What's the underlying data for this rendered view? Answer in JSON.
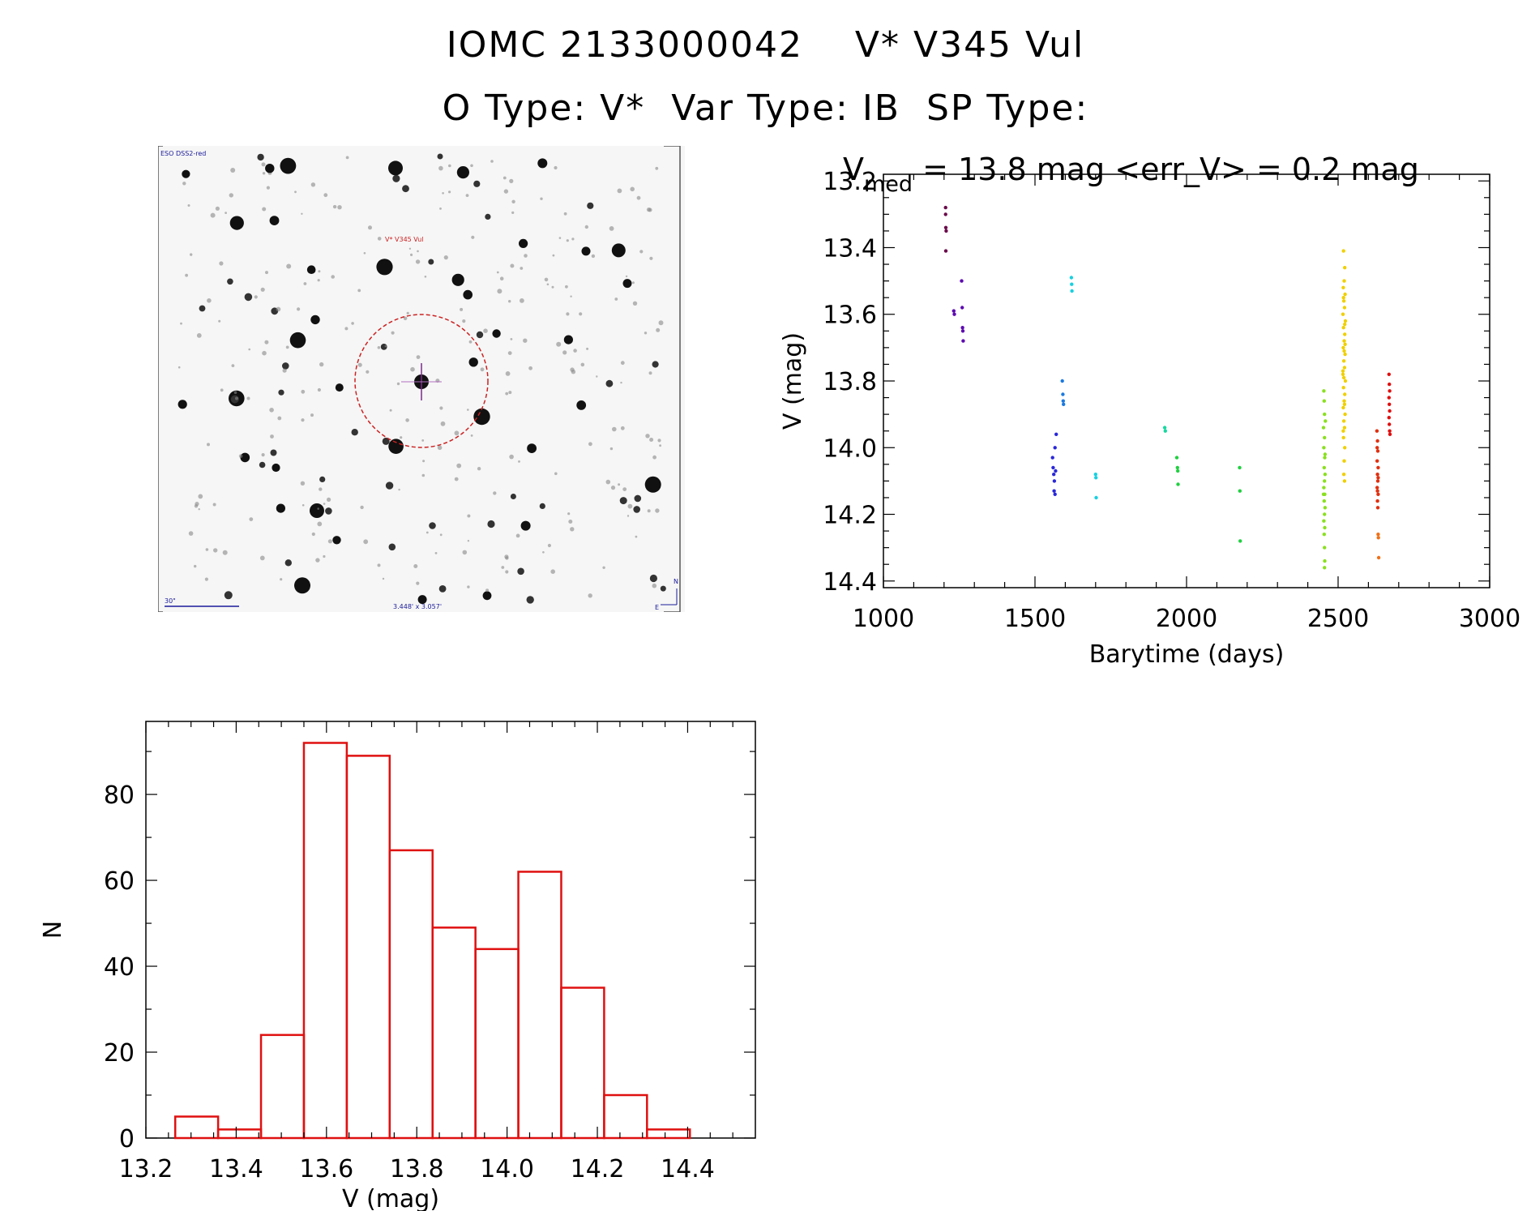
{
  "header": {
    "title_line1": "IOMC 2133000042    V* V345 Vul",
    "title_line2": "O Type: V*  Var Type: IB  SP Type:"
  },
  "finder_chart": {
    "survey_label": "ESO DSS2-red",
    "object_label": "V* V345 Vul",
    "scale_label": "30\"",
    "fov_label": "3.448' x 3.057'",
    "north_label": "N",
    "east_label": "E",
    "circle_color": "#cc2222",
    "label_color": "#1a1a9a"
  },
  "chart_data": [
    {
      "type": "scatter",
      "title_prefix": "V",
      "title_subscript": "med",
      "title_rest": " = 13.8 mag <err_V> = 0.2 mag",
      "xlabel": "Barytime (days)",
      "ylabel": "V (mag)",
      "xlim": [
        1000,
        3000
      ],
      "ylim": [
        14.42,
        13.18
      ],
      "y_inverted": true,
      "xticks": [
        1000,
        1500,
        2000,
        2500,
        3000
      ],
      "yticks": [
        13.2,
        13.4,
        13.6,
        13.8,
        14.0,
        14.2,
        14.4
      ],
      "grid": false,
      "groups": [
        {
          "color": "#6a0b4a",
          "points": [
            [
              1205,
              13.28
            ],
            [
              1205,
              13.3
            ],
            [
              1206,
              13.34
            ],
            [
              1207,
              13.35
            ],
            [
              1206,
              13.41
            ]
          ]
        },
        {
          "color": "#5d0bb0",
          "points": [
            [
              1232,
              13.59
            ],
            [
              1234,
              13.6
            ],
            [
              1258,
              13.5
            ],
            [
              1260,
              13.58
            ],
            [
              1261,
              13.64
            ],
            [
              1262,
              13.65
            ],
            [
              1263,
              13.68
            ]
          ]
        },
        {
          "color": "#2a28d8",
          "points": [
            [
              1558,
              14.03
            ],
            [
              1560,
              14.06
            ],
            [
              1562,
              14.08
            ],
            [
              1564,
              14.1
            ],
            [
              1563,
              14.13
            ],
            [
              1566,
              14.14
            ],
            [
              1568,
              14.07
            ],
            [
              1570,
              13.96
            ],
            [
              1566,
              14.0
            ]
          ]
        },
        {
          "color": "#1a7ae0",
          "points": [
            [
              1590,
              13.8
            ],
            [
              1592,
              13.84
            ],
            [
              1593,
              13.86
            ],
            [
              1594,
              13.87
            ]
          ]
        },
        {
          "color": "#18d0e0",
          "points": [
            [
              1620,
              13.49
            ],
            [
              1621,
              13.51
            ],
            [
              1622,
              13.53
            ],
            [
              1700,
              14.08
            ],
            [
              1701,
              14.09
            ],
            [
              1702,
              14.15
            ]
          ]
        },
        {
          "color": "#18d8a0",
          "points": [
            [
              1928,
              13.94
            ],
            [
              1930,
              13.95
            ]
          ]
        },
        {
          "color": "#20d040",
          "points": [
            [
              1968,
              14.03
            ],
            [
              1970,
              14.06
            ],
            [
              1971,
              14.07
            ],
            [
              1972,
              14.11
            ],
            [
              2175,
              14.06
            ],
            [
              2176,
              14.13
            ],
            [
              2177,
              14.28
            ]
          ]
        },
        {
          "color": "#8ae020",
          "points": [
            [
              2453,
              13.83
            ],
            [
              2454,
              13.86
            ],
            [
              2455,
              13.9
            ],
            [
              2452,
              13.94
            ],
            [
              2455,
              13.97
            ],
            [
              2453,
              14.0
            ],
            [
              2456,
              14.03
            ],
            [
              2454,
              14.06
            ],
            [
              2457,
              14.08
            ],
            [
              2455,
              14.1
            ],
            [
              2453,
              14.12
            ],
            [
              2456,
              14.14
            ],
            [
              2454,
              14.16
            ],
            [
              2457,
              14.18
            ],
            [
              2455,
              14.2
            ],
            [
              2453,
              14.22
            ],
            [
              2456,
              14.24
            ],
            [
              2454,
              14.26
            ],
            [
              2455,
              14.3
            ],
            [
              2456,
              14.34
            ],
            [
              2455,
              14.36
            ],
            [
              2457,
              14.02
            ],
            [
              2452,
              14.14
            ],
            [
              2458,
              13.92
            ]
          ]
        },
        {
          "color": "#f0d000",
          "points": [
            [
              2518,
              13.41
            ],
            [
              2522,
              13.46
            ],
            [
              2520,
              13.5
            ],
            [
              2517,
              13.52
            ],
            [
              2523,
              13.54
            ],
            [
              2519,
              13.56
            ],
            [
              2521,
              13.58
            ],
            [
              2516,
              13.6
            ],
            [
              2524,
              13.62
            ],
            [
              2518,
              13.64
            ],
            [
              2522,
              13.66
            ],
            [
              2520,
              13.68
            ],
            [
              2517,
              13.7
            ],
            [
              2523,
              13.72
            ],
            [
              2519,
              13.74
            ],
            [
              2521,
              13.76
            ],
            [
              2516,
              13.78
            ],
            [
              2524,
              13.8
            ],
            [
              2518,
              13.82
            ],
            [
              2522,
              13.84
            ],
            [
              2520,
              13.86
            ],
            [
              2517,
              13.88
            ],
            [
              2523,
              13.9
            ],
            [
              2519,
              13.92
            ],
            [
              2521,
              13.94
            ],
            [
              2518,
              13.97
            ],
            [
              2522,
              14.0
            ],
            [
              2520,
              14.04
            ],
            [
              2519,
              14.08
            ],
            [
              2521,
              14.1
            ],
            [
              2518,
              13.55
            ],
            [
              2522,
              13.63
            ],
            [
              2520,
              13.71
            ],
            [
              2519,
              13.79
            ],
            [
              2521,
              13.87
            ],
            [
              2517,
              13.95
            ],
            [
              2523,
              13.69
            ],
            [
              2516,
              13.77
            ]
          ]
        },
        {
          "color": "#e03010",
          "points": [
            [
              2628,
              13.95
            ],
            [
              2630,
              13.98
            ],
            [
              2631,
              14.01
            ],
            [
              2629,
              14.04
            ],
            [
              2632,
              14.06
            ],
            [
              2630,
              14.08
            ],
            [
              2631,
              14.1
            ],
            [
              2629,
              14.12
            ],
            [
              2632,
              14.14
            ],
            [
              2630,
              14.16
            ],
            [
              2631,
              14.18
            ],
            [
              2629,
              14.0
            ],
            [
              2632,
              14.09
            ],
            [
              2630,
              14.13
            ]
          ]
        },
        {
          "color": "#f07018",
          "points": [
            [
              2632,
              14.26
            ],
            [
              2633,
              14.27
            ],
            [
              2634,
              14.33
            ]
          ]
        },
        {
          "color": "#e01010",
          "points": [
            [
              2668,
              13.78
            ],
            [
              2669,
              13.81
            ],
            [
              2670,
              13.83
            ],
            [
              2668,
              13.85
            ],
            [
              2669,
              13.87
            ],
            [
              2670,
              13.89
            ],
            [
              2668,
              13.91
            ],
            [
              2669,
              13.93
            ],
            [
              2670,
              13.95
            ],
            [
              2671,
              13.96
            ]
          ]
        }
      ]
    },
    {
      "type": "bar",
      "subtype": "histogram",
      "xlabel": "V (mag)",
      "ylabel": "N",
      "xlim": [
        13.2,
        14.55
      ],
      "ylim": [
        0,
        97
      ],
      "xticks": [
        13.2,
        13.4,
        13.6,
        13.8,
        14.0,
        14.2,
        14.4
      ],
      "yticks": [
        0,
        20,
        40,
        60,
        80
      ],
      "bar_color": "#e01010",
      "bin_edges": [
        13.265,
        13.36,
        13.455,
        13.55,
        13.645,
        13.74,
        13.835,
        13.93,
        14.025,
        14.12,
        14.215,
        14.31,
        14.405
      ],
      "counts": [
        5,
        2,
        24,
        92,
        89,
        67,
        49,
        44,
        62,
        35,
        10,
        2
      ]
    }
  ]
}
